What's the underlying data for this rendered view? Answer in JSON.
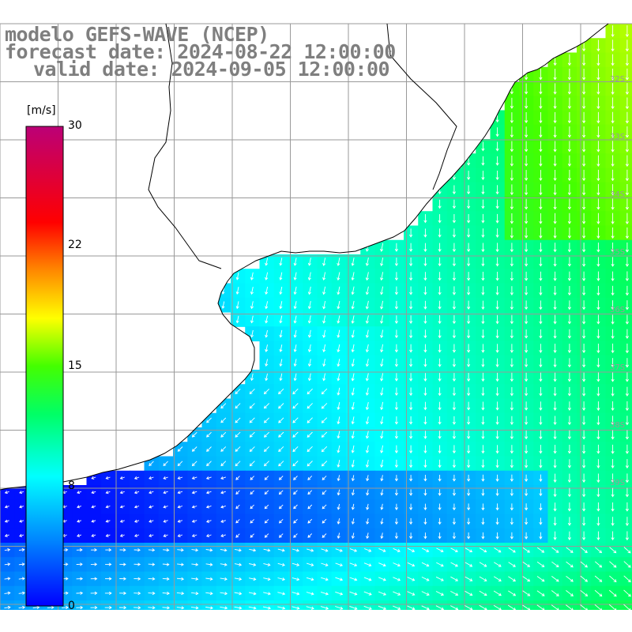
{
  "header": {
    "model_line": "modelo GEFS-WAVE (NCEP)",
    "forecast_line": "forecast date: 2024-08-22 12:00:00",
    "valid_line": "valid date: 2024-09-05 12:00:00"
  },
  "colorbar": {
    "unit": "[m/s]",
    "min": 0,
    "max": 30,
    "ticks": [
      "30",
      "22",
      "15",
      "8",
      "0"
    ],
    "tick_values": [
      30,
      22,
      15,
      8,
      0
    ],
    "colors": [
      "#0000ff",
      "#00aaff",
      "#00ffff",
      "#00ff00",
      "#ffff00",
      "#ff8800",
      "#ff0000",
      "#bb0077"
    ]
  },
  "map": {
    "field": "wind speed with direction arrows",
    "land_color": "#ffffff",
    "grid_color": "#999999",
    "arrow_color": "#ffffff",
    "coast_color": "#000000",
    "right_edge_labels": [
      "32S",
      "33S",
      "34S",
      "35S",
      "36S",
      "37S",
      "38S",
      "39S"
    ]
  }
}
